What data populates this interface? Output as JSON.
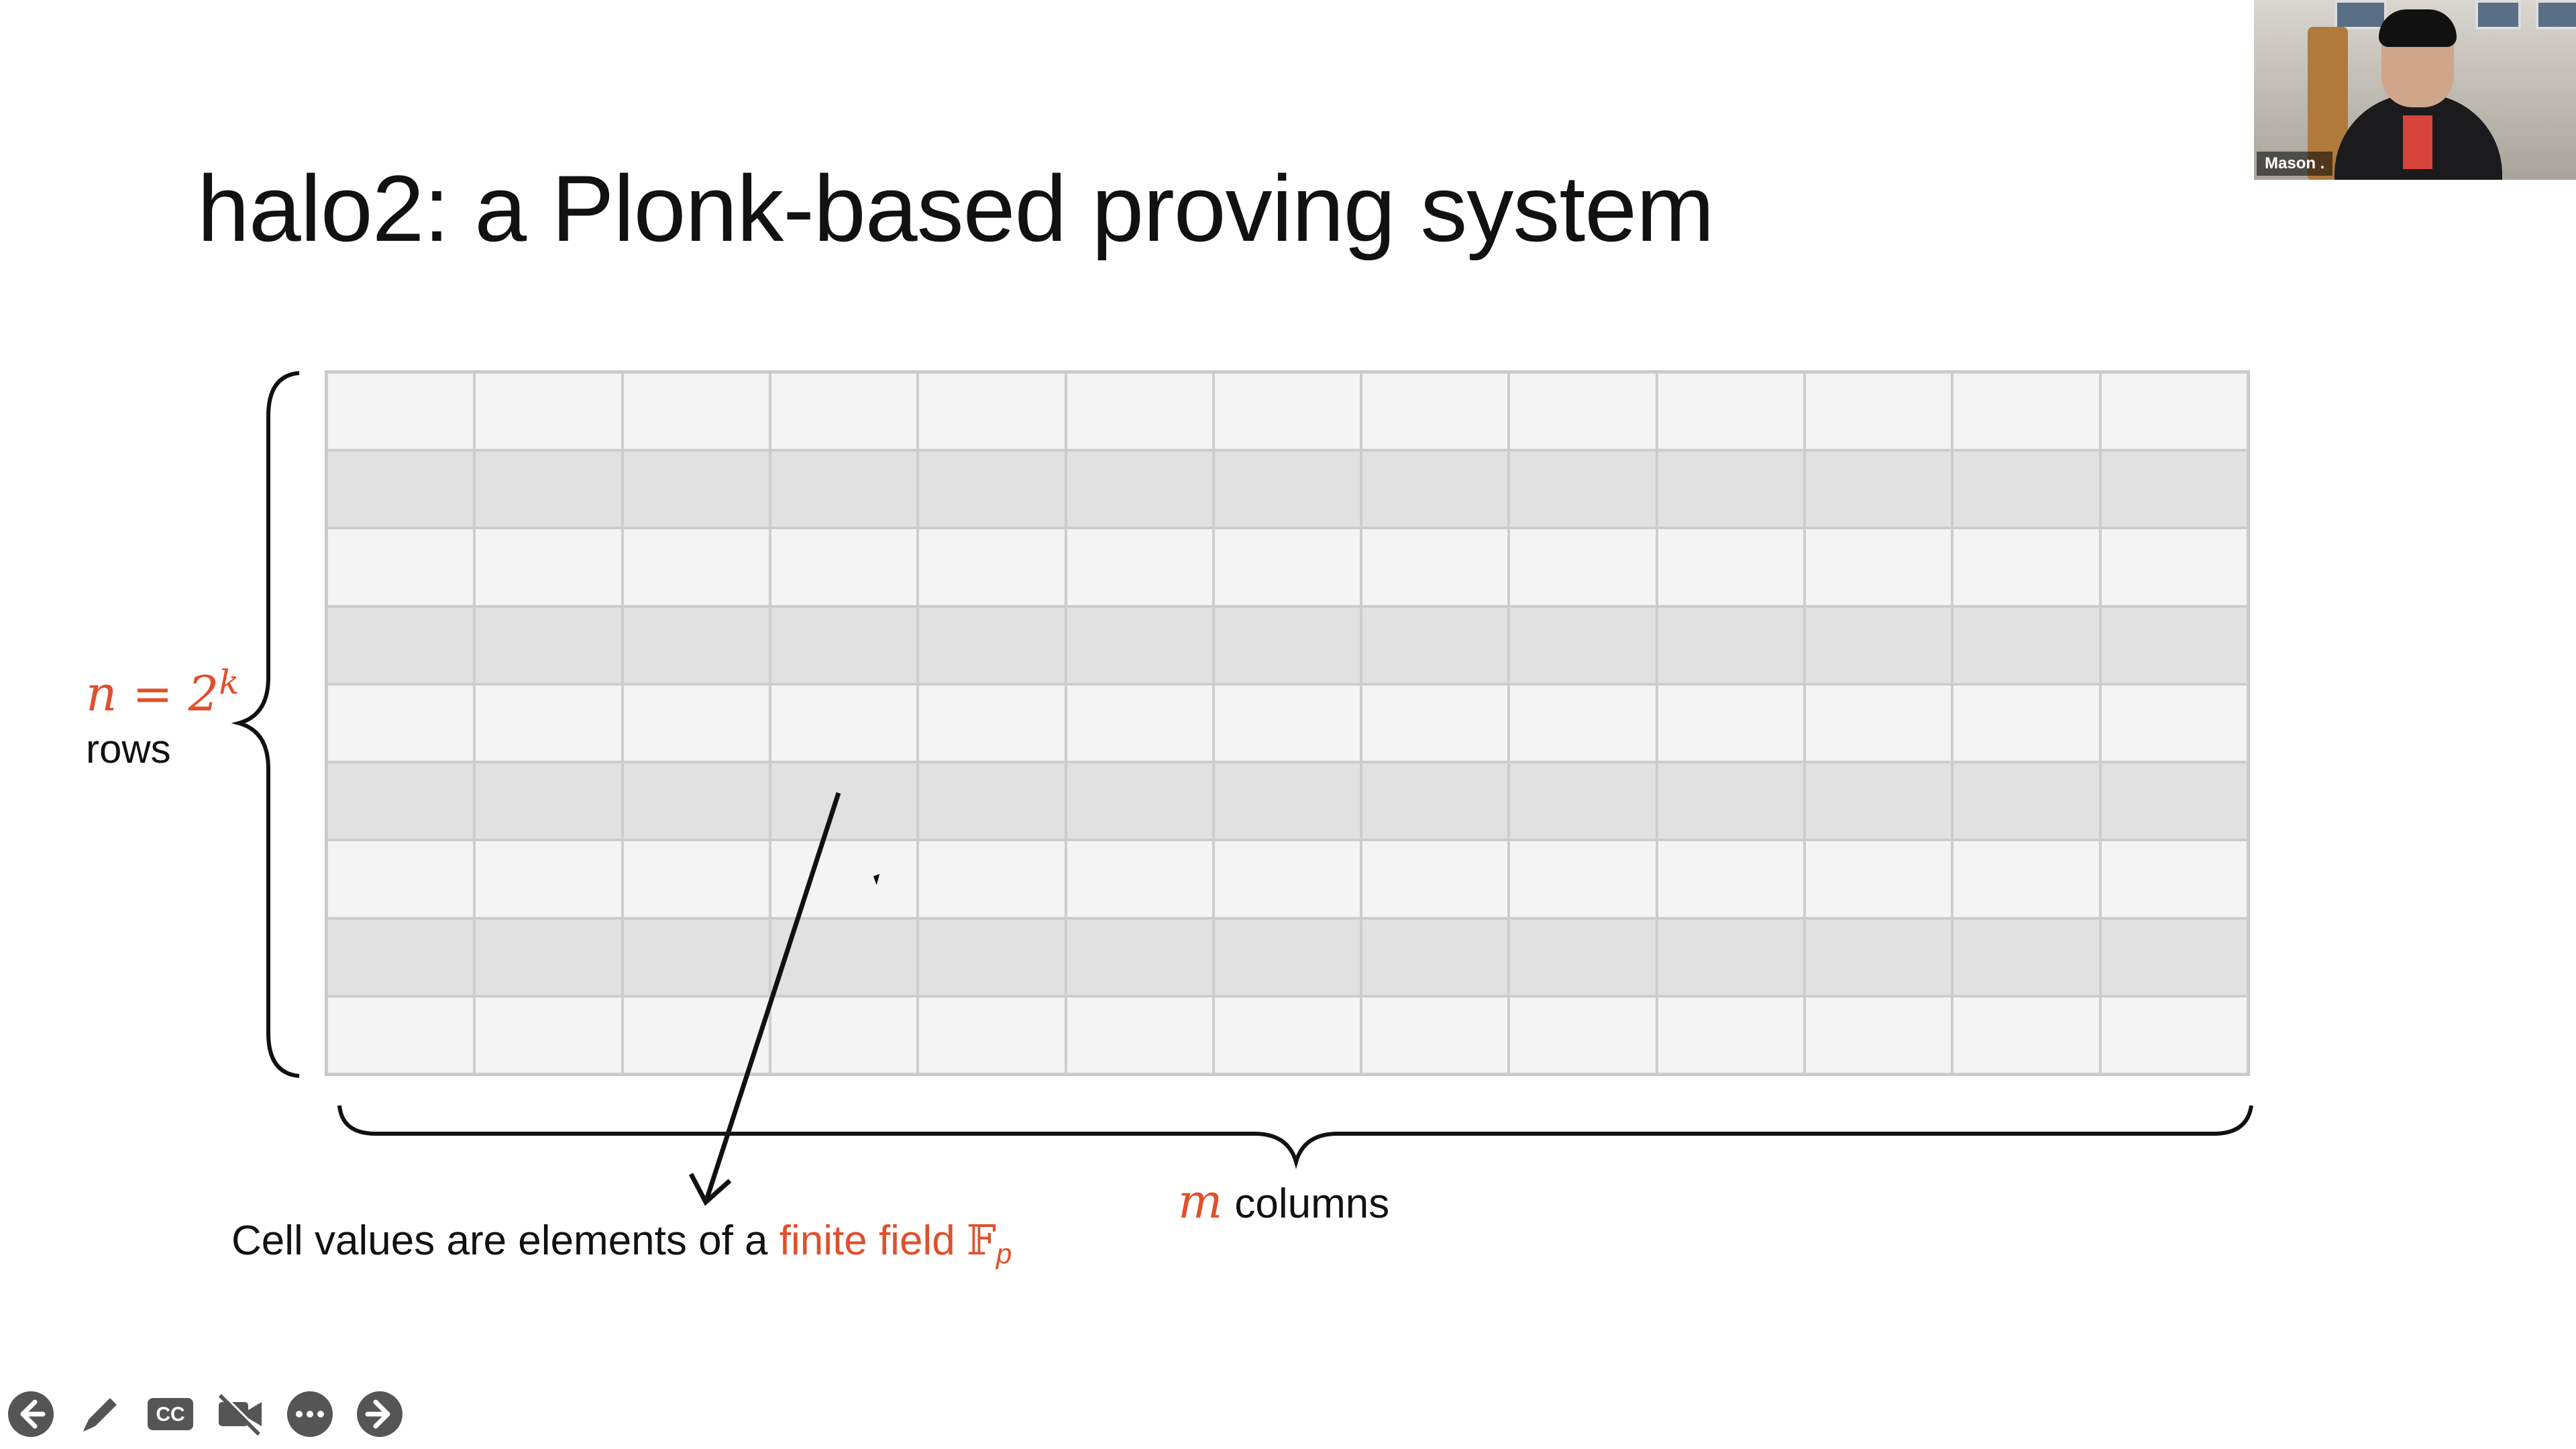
{
  "slide": {
    "title": "halo2: a Plonk-based proving system",
    "grid": {
      "rows": 9,
      "columns": 13
    },
    "rows_label": {
      "n_expr": "n = 2",
      "exponent": "k",
      "text": "rows"
    },
    "columns_label": {
      "m": "m",
      "text": "columns"
    },
    "cell_note": {
      "prefix": "Cell values are elements of a ",
      "highlight": "finite field ",
      "field_symbol": "𝔽",
      "subscript": "p"
    }
  },
  "webcam": {
    "participant_name": "Mason ."
  },
  "toolbar": {
    "buttons": [
      {
        "name": "previous",
        "icon": "arrow-left-icon"
      },
      {
        "name": "annotate",
        "icon": "pen-icon"
      },
      {
        "name": "captions",
        "icon": "cc-icon"
      },
      {
        "name": "video",
        "icon": "video-off-icon"
      },
      {
        "name": "more",
        "icon": "more-icon"
      },
      {
        "name": "next",
        "icon": "arrow-right-icon"
      }
    ]
  },
  "colors": {
    "accent_red": "#e0502b",
    "toolbar_icon": "#555555"
  }
}
